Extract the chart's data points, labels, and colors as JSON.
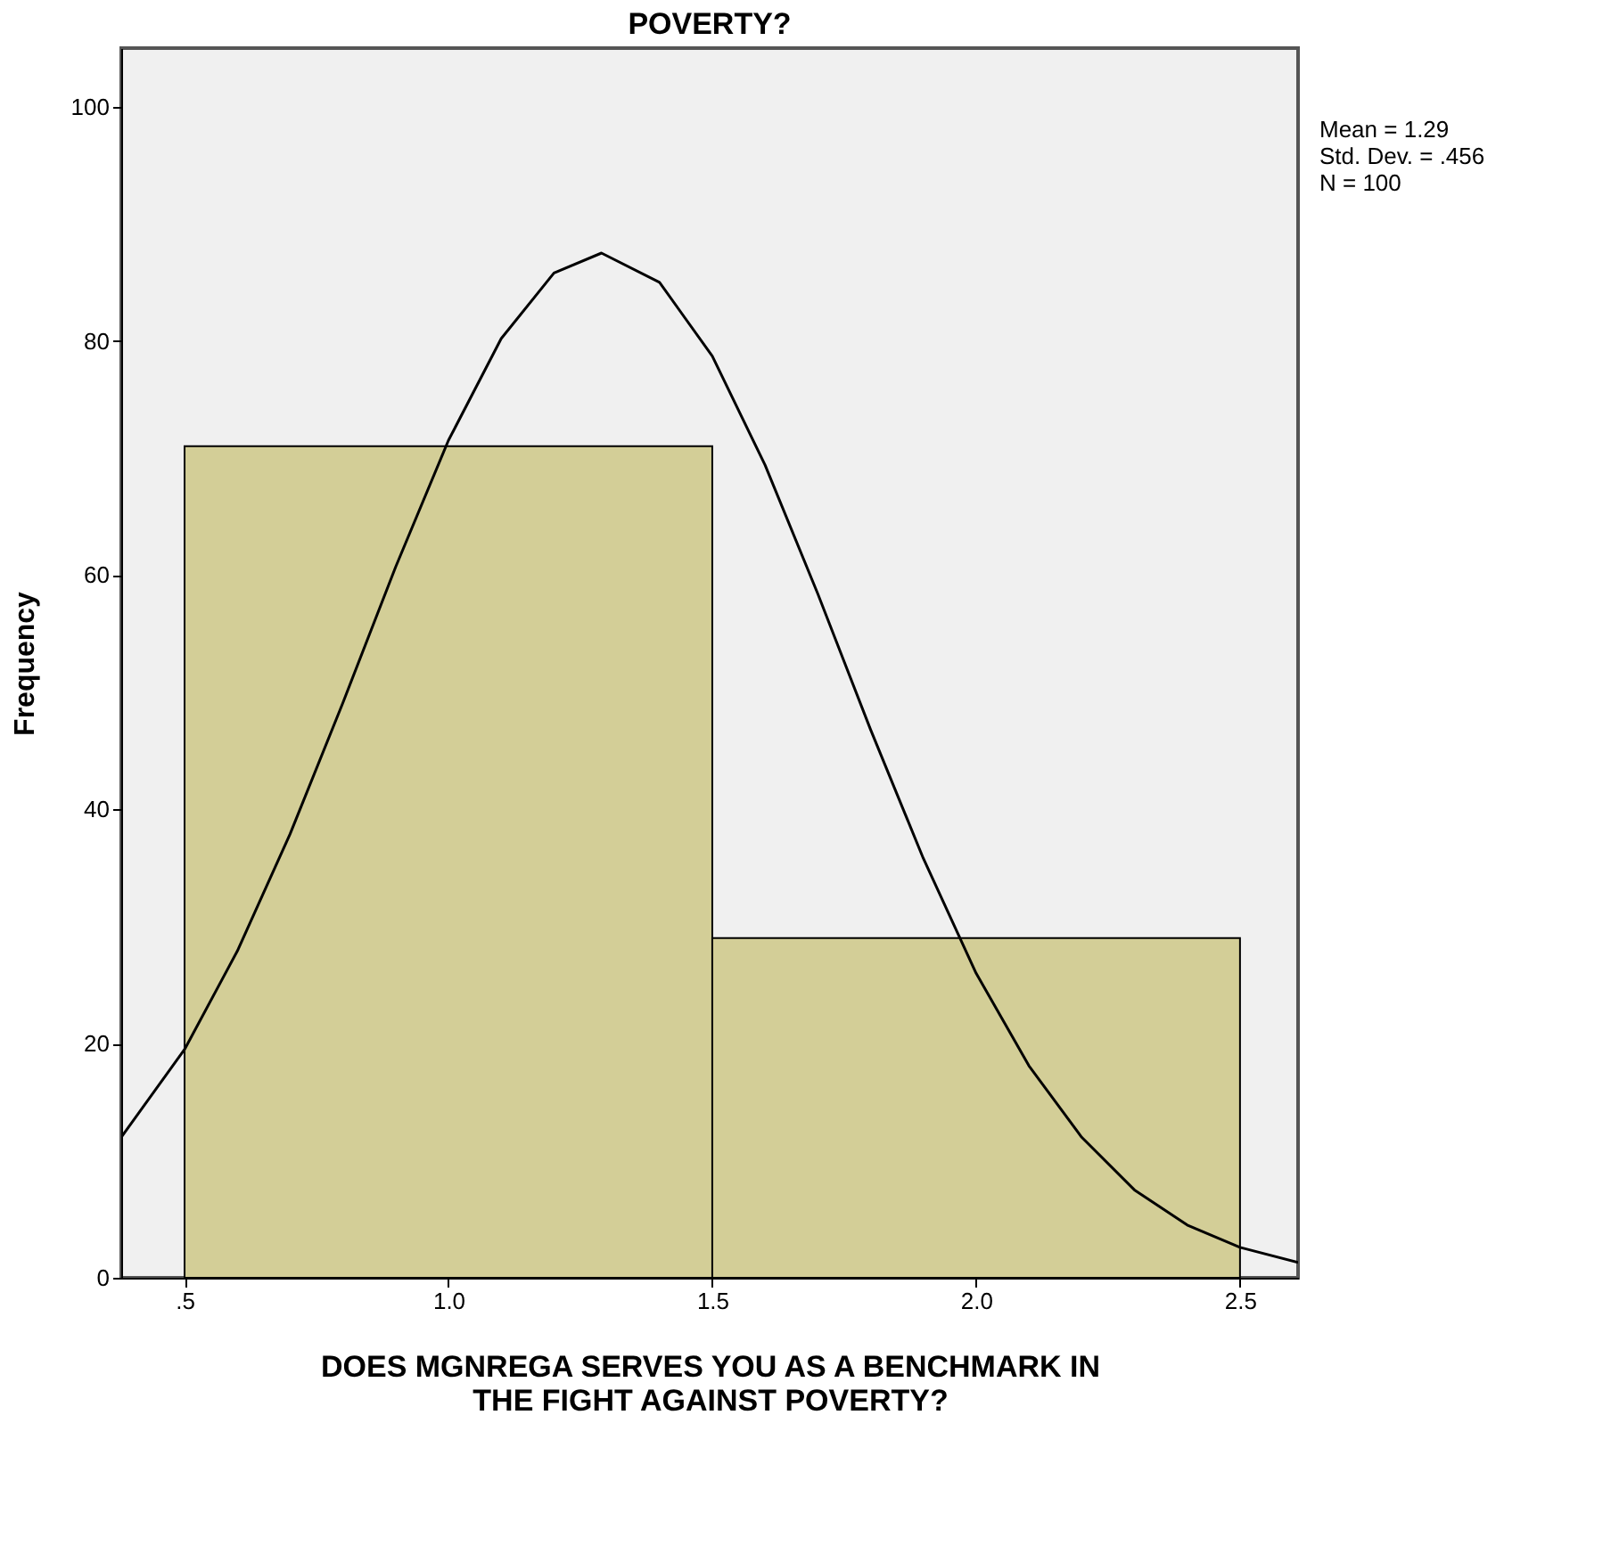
{
  "chart_data": {
    "type": "histogram",
    "title": "POVERTY?",
    "xlabel": "DOES MGNREGA SERVES YOU AS A BENCHMARK IN\nTHE FIGHT AGAINST POVERTY?",
    "ylabel": "Frequency",
    "bins": [
      0.5,
      1.5,
      2.5
    ],
    "values": [
      71,
      29
    ],
    "color": "#d3ce97",
    "series": [
      {
        "type": "line",
        "color": "#000000",
        "x": [
          0.38,
          0.5,
          0.6,
          0.7,
          0.8,
          0.9,
          1.0,
          1.1,
          1.2,
          1.29,
          1.4,
          1.5,
          1.6,
          1.7,
          1.8,
          1.9,
          2.0,
          2.1,
          2.2,
          2.3,
          2.4,
          2.5,
          2.61
        ],
        "values": [
          12.0,
          19.5,
          27.9,
          37.9,
          49.1,
          60.7,
          71.5,
          80.2,
          85.8,
          87.5,
          85.0,
          78.7,
          69.4,
          58.4,
          46.8,
          35.8,
          26.0,
          18.1,
          12.0,
          7.5,
          4.5,
          2.6,
          1.3
        ]
      }
    ],
    "xlim": [
      0.38,
      2.61
    ],
    "ylim": [
      0,
      105
    ],
    "xticks": [
      {
        "value": 0.5,
        "label": ".5"
      },
      {
        "value": 1.0,
        "label": "1.0"
      },
      {
        "value": 1.5,
        "label": "1.5"
      },
      {
        "value": 2.0,
        "label": "2.0"
      },
      {
        "value": 2.5,
        "label": "2.5"
      }
    ],
    "yticks": [
      0,
      20,
      40,
      60,
      80,
      100
    ],
    "grid": false,
    "annotations": [
      "Mean = 1.29",
      "Std. Dev. = .456",
      "N = 100"
    ]
  }
}
